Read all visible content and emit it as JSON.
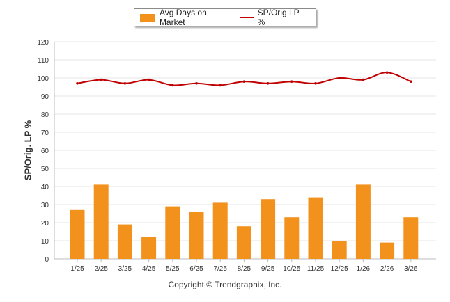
{
  "chart_data": {
    "type": "bar",
    "categories": [
      "1/25",
      "2/25",
      "3/25",
      "4/25",
      "5/25",
      "6/25",
      "7/25",
      "8/25",
      "9/25",
      "10/25",
      "11/25",
      "12/25",
      "1/26",
      "2/26",
      "3/26"
    ],
    "series": [
      {
        "name": "Avg Days on Market",
        "type": "bar",
        "color": "#F2921D",
        "values": [
          27,
          41,
          19,
          12,
          29,
          26,
          31,
          18,
          33,
          23,
          34,
          10,
          41,
          9,
          23
        ]
      },
      {
        "name": "SP/Orig LP %",
        "type": "line",
        "color": "#C00000",
        "values": [
          97,
          99,
          97,
          99,
          96,
          97,
          96,
          98,
          97,
          98,
          97,
          100,
          99,
          103,
          98
        ]
      }
    ],
    "ylabel": "SP/Orig. LP %",
    "xlabel": "",
    "ylim": [
      0,
      120
    ],
    "yticks": [
      0,
      10,
      20,
      30,
      40,
      50,
      60,
      70,
      80,
      90,
      100,
      110,
      120
    ],
    "grid": true,
    "legend_position": "top-center"
  },
  "footer": {
    "copyright": "Copyright © Trendgraphix, Inc."
  }
}
